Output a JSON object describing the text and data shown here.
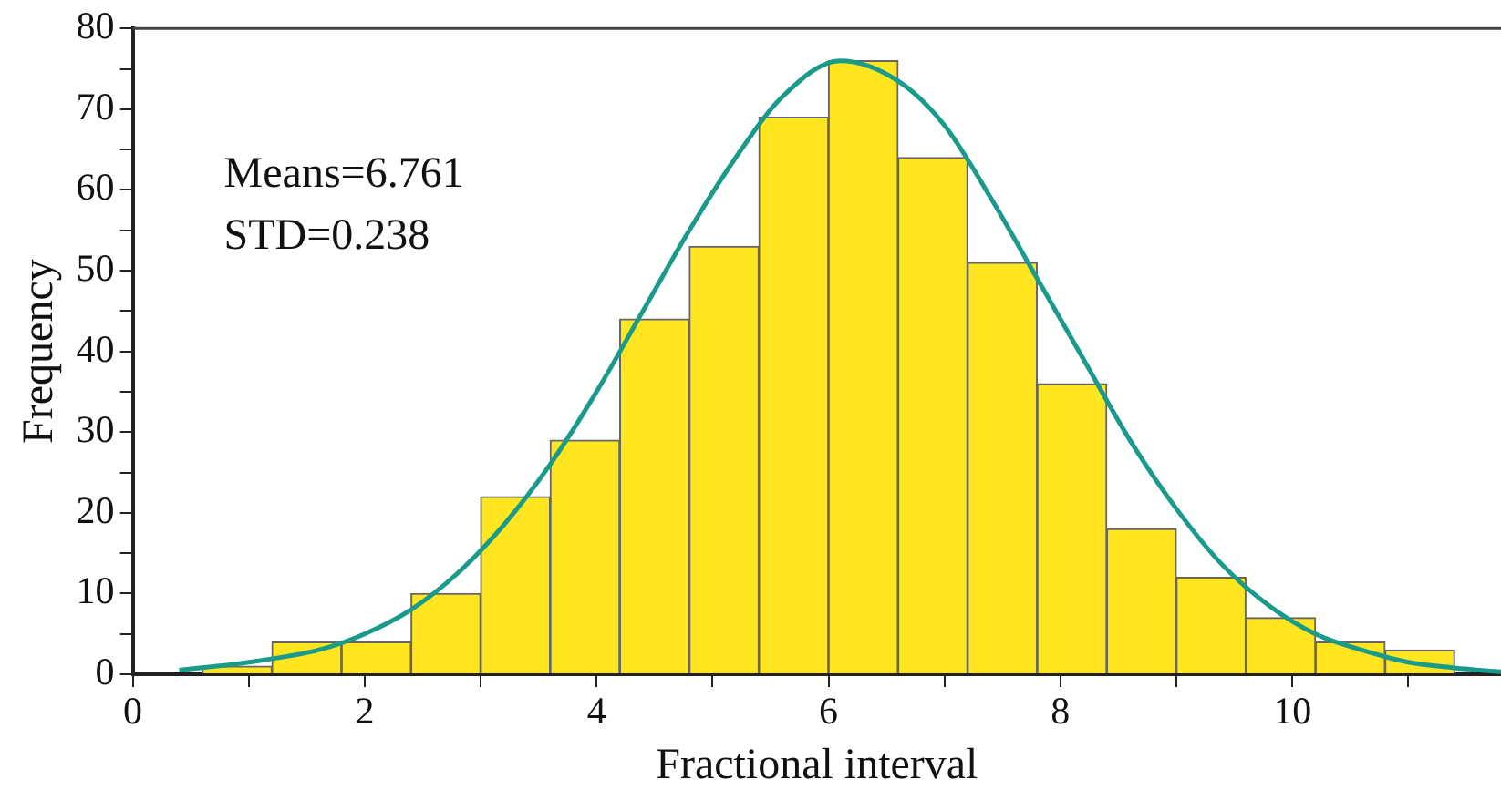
{
  "chart_data": {
    "type": "histogram",
    "xlabel": "Fractional interval",
    "ylabel": "Frequency",
    "bins": [
      0.6,
      1.2,
      1.8,
      2.4,
      3.0,
      3.6,
      4.2,
      4.8,
      5.4,
      6.0,
      6.6,
      7.2,
      7.8,
      8.4,
      9.0,
      9.6,
      10.2,
      10.8,
      11.4
    ],
    "values": [
      1,
      4,
      4,
      10,
      22,
      29,
      44,
      53,
      69,
      76,
      64,
      51,
      36,
      18,
      12,
      7,
      4,
      3
    ],
    "color": "#ffe620",
    "series": [
      {
        "type": "line",
        "color": "#1a9a8a",
        "marker": "none",
        "x": [
          0.4,
          1.0,
          1.6,
          2.0,
          2.4,
          2.8,
          3.2,
          3.6,
          4.0,
          4.4,
          4.8,
          5.2,
          5.6,
          6.1,
          6.6,
          7.0,
          7.4,
          7.8,
          8.2,
          8.6,
          9.0,
          9.4,
          9.8,
          10.2,
          10.6,
          11.0,
          11.4,
          11.8
        ],
        "values": [
          0.5,
          1.5,
          3,
          5,
          8,
          12.5,
          18.5,
          26,
          35,
          45,
          55,
          64,
          71.5,
          76,
          73.5,
          68,
          59,
          49,
          39,
          29,
          20.5,
          13.5,
          8.5,
          5,
          3,
          1.5,
          0.8,
          0.3
        ]
      }
    ],
    "xlim": [
      0,
      11.8
    ],
    "ylim": [
      0,
      80
    ],
    "xticks": [
      0,
      {
        "value": 1,
        "label": null
      },
      2,
      {
        "value": 3,
        "label": null
      },
      4,
      {
        "value": 5,
        "label": null
      },
      6,
      {
        "value": 7,
        "label": null
      },
      8,
      {
        "value": 9,
        "label": null
      },
      10,
      {
        "value": 11,
        "label": null
      }
    ],
    "yticks": [
      0,
      {
        "value": 5,
        "label": null
      },
      10,
      {
        "value": 15,
        "label": null
      },
      20,
      {
        "value": 25,
        "label": null
      },
      30,
      {
        "value": 35,
        "label": null
      },
      40,
      {
        "value": 45,
        "label": null
      },
      50,
      {
        "value": 55,
        "label": null
      },
      60,
      {
        "value": 65,
        "label": null
      },
      70,
      {
        "value": 75,
        "label": null
      },
      80
    ],
    "annotations": [
      "Means=6.761",
      "STD=0.238"
    ],
    "grid": false,
    "legend": false
  }
}
